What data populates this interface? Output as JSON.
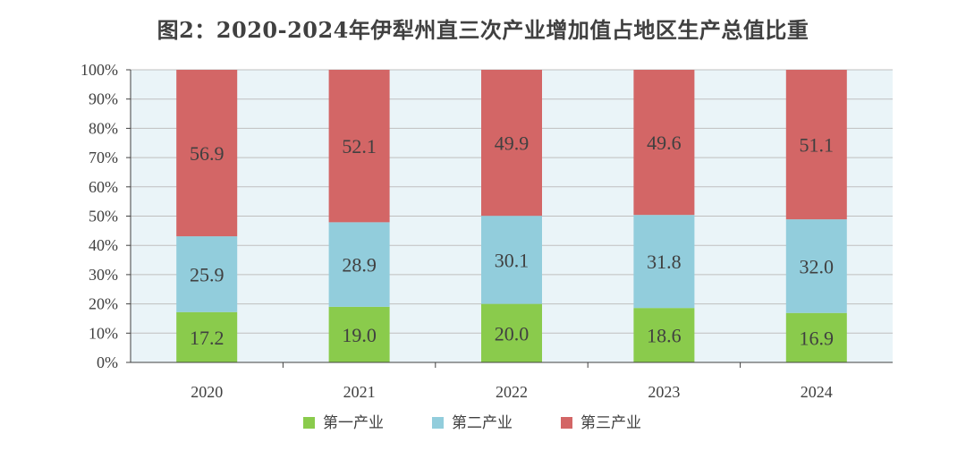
{
  "title": "图2：2020-2024年伊犁州直三次产业增加值占地区生产总值比重",
  "chart_data": {
    "type": "bar",
    "stacked": true,
    "categories": [
      "2020",
      "2021",
      "2022",
      "2023",
      "2024"
    ],
    "series": [
      {
        "name": "第一产业",
        "color": "#8ACB4C",
        "values": [
          17.2,
          19.0,
          20.0,
          18.6,
          16.9
        ]
      },
      {
        "name": "第二产业",
        "color": "#92CDDC",
        "values": [
          25.9,
          28.9,
          30.1,
          31.8,
          32.0
        ]
      },
      {
        "name": "第三产业",
        "color": "#D36666",
        "values": [
          56.9,
          52.1,
          49.9,
          49.6,
          51.1
        ]
      }
    ],
    "yticks": [
      "0%",
      "10%",
      "20%",
      "30%",
      "40%",
      "50%",
      "60%",
      "70%",
      "80%",
      "90%",
      "100%"
    ],
    "ylim": [
      0,
      100
    ],
    "grid": true,
    "plot_background": "#EAF4F8",
    "legend_position": "bottom"
  }
}
